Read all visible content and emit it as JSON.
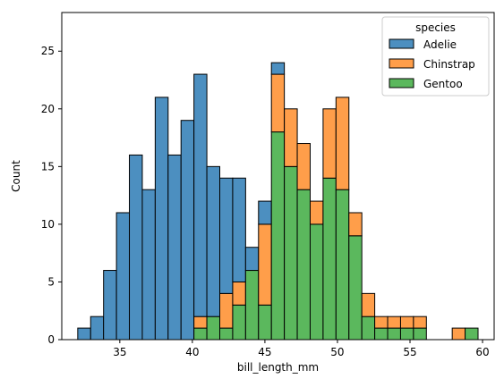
{
  "chart_data": {
    "type": "bar",
    "stacked": true,
    "title": "",
    "xlabel": "bill_length_mm",
    "ylabel": "Count",
    "xlim": [
      31.0,
      60.8
    ],
    "ylim": [
      0,
      28.35
    ],
    "x_ticks": [
      35,
      40,
      45,
      50,
      55,
      60
    ],
    "y_ticks": [
      0,
      5,
      10,
      15,
      20,
      25
    ],
    "grid": false,
    "legend": {
      "title": "species",
      "placement": "top-right"
    },
    "bin_edges": [
      32.1,
      32.99,
      33.88,
      34.77,
      35.66,
      36.55,
      37.44,
      38.33,
      39.22,
      40.11,
      41.0,
      41.89,
      42.78,
      43.67,
      44.56,
      45.45,
      46.34,
      47.23,
      48.12,
      49.01,
      49.9,
      50.79,
      51.68,
      52.57,
      53.46,
      54.35,
      55.24,
      56.13,
      57.02,
      57.91,
      58.8,
      59.69
    ],
    "series": [
      {
        "name": "Adelie",
        "color": "#4c8fc0",
        "values": [
          1,
          2,
          6,
          11,
          16,
          13,
          21,
          16,
          19,
          21,
          13,
          10,
          9,
          2,
          2,
          1,
          0,
          0,
          0,
          0,
          0,
          0,
          0,
          0,
          0,
          0,
          0,
          0,
          0,
          0,
          0
        ]
      },
      {
        "name": "Chinstrap",
        "color": "#ff9e4a",
        "values": [
          0,
          0,
          0,
          0,
          0,
          0,
          0,
          0,
          0,
          1,
          0,
          3,
          2,
          0,
          7,
          5,
          5,
          4,
          2,
          6,
          8,
          2,
          2,
          1,
          1,
          1,
          1,
          0,
          0,
          1,
          0
        ]
      },
      {
        "name": "Gentoo",
        "color": "#5bb85d",
        "values": [
          0,
          0,
          0,
          0,
          0,
          0,
          0,
          0,
          0,
          1,
          2,
          1,
          3,
          6,
          3,
          18,
          15,
          13,
          10,
          14,
          13,
          9,
          2,
          1,
          1,
          1,
          1,
          0,
          0,
          0,
          1
        ]
      }
    ]
  }
}
